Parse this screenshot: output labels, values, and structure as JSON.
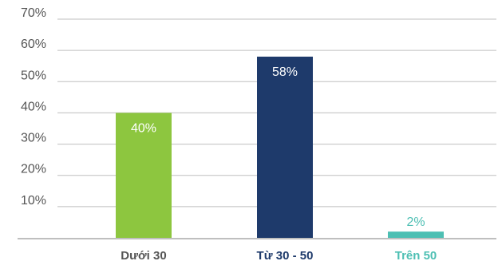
{
  "chart_data": {
    "type": "bar",
    "categories": [
      "Dưới 30",
      "Từ 30 - 50",
      "Trên 50"
    ],
    "values": [
      40,
      58,
      2
    ],
    "value_labels": [
      "40%",
      "58%",
      "2%"
    ],
    "bar_colors": [
      "#8dc63f",
      "#1e3a6b",
      "#4dbfb3"
    ],
    "label_colors": [
      "#ffffff",
      "#ffffff",
      "#4dbfb3"
    ],
    "category_colors": [
      "#555555",
      "#1e3a6b",
      "#4dbfb3"
    ],
    "yticks": [
      10,
      20,
      30,
      40,
      50,
      60,
      70
    ],
    "ytick_labels": [
      "10%",
      "20%",
      "30%",
      "40%",
      "50%",
      "60%",
      "70%"
    ],
    "ylim": [
      0,
      70
    ],
    "grid": true,
    "legend": "none",
    "title": "",
    "xlabel": "",
    "ylabel": ""
  }
}
